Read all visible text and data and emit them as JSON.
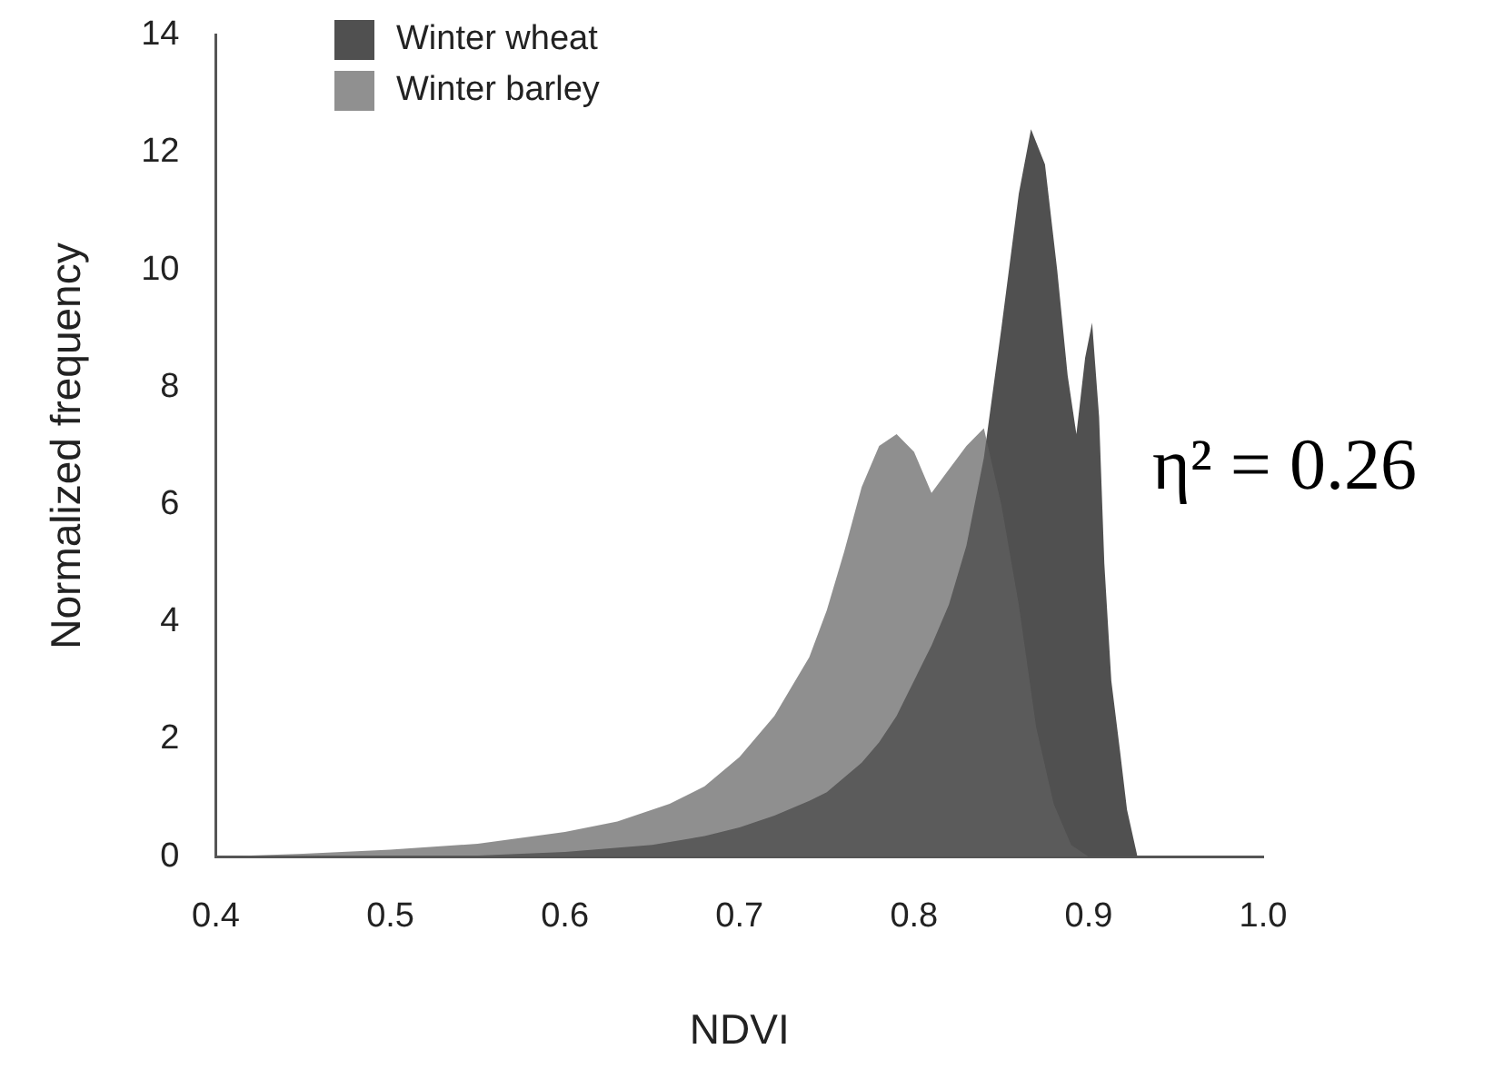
{
  "chart_data": {
    "type": "area",
    "xlabel": "NDVI",
    "ylabel": "Normalized frequency",
    "xlim": [
      0.4,
      1.0
    ],
    "xticks": [
      0.4,
      0.5,
      0.6,
      0.7,
      0.8,
      0.9,
      {
        "value": 1.0,
        "label": "1.0"
      }
    ],
    "ylim": [
      0,
      14
    ],
    "yticks": [
      0,
      2,
      4,
      6,
      8,
      10,
      12,
      14
    ],
    "grid": false,
    "legend": "top left",
    "annotations": [
      "η² = 0.26"
    ],
    "series": [
      {
        "name": "Winter wheat",
        "color": "#505050",
        "x": [
          0.4,
          0.55,
          0.6,
          0.65,
          0.68,
          0.7,
          0.72,
          0.74,
          0.75,
          0.76,
          0.77,
          0.78,
          0.79,
          0.8,
          0.81,
          0.82,
          0.83,
          0.84,
          0.85,
          0.86,
          0.867,
          0.875,
          0.882,
          0.888,
          0.893,
          0.898,
          0.902,
          0.906,
          0.909,
          0.913,
          0.918,
          0.922,
          0.928
        ],
        "values": [
          0,
          0.02,
          0.08,
          0.2,
          0.35,
          0.5,
          0.7,
          0.95,
          1.1,
          1.35,
          1.6,
          1.95,
          2.4,
          3.0,
          3.6,
          4.3,
          5.3,
          6.8,
          9.0,
          11.3,
          12.4,
          11.8,
          10.0,
          8.2,
          7.2,
          8.5,
          9.1,
          7.5,
          5.0,
          3.0,
          1.8,
          0.8,
          0
        ]
      },
      {
        "name": "Winter barley",
        "color": "#909090",
        "x": [
          0.4,
          0.42,
          0.45,
          0.5,
          0.55,
          0.6,
          0.63,
          0.66,
          0.68,
          0.7,
          0.72,
          0.74,
          0.75,
          0.76,
          0.77,
          0.78,
          0.79,
          0.8,
          0.81,
          0.82,
          0.83,
          0.84,
          0.85,
          0.86,
          0.87,
          0.88,
          0.89,
          0.9
        ],
        "values": [
          0,
          0.02,
          0.05,
          0.12,
          0.22,
          0.42,
          0.6,
          0.9,
          1.2,
          1.7,
          2.4,
          3.4,
          4.2,
          5.2,
          6.3,
          7.0,
          7.2,
          6.9,
          6.2,
          6.6,
          7.0,
          7.3,
          6.0,
          4.3,
          2.2,
          0.9,
          0.2,
          0
        ]
      }
    ]
  }
}
